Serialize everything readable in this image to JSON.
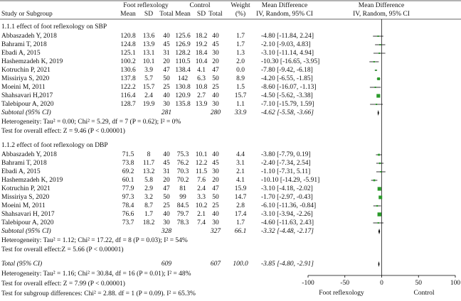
{
  "chart_data": {
    "type": "forest",
    "header": {
      "study": "Study or Subgroup",
      "group1": "Foot reflexology",
      "group2": "Control",
      "mean": "Mean",
      "sd": "SD",
      "total": "Total",
      "weight": "Weight",
      "weight_unit": "(%)",
      "effect": "Mean Difference",
      "method": "IV, Random, 95% CI",
      "plot_title": "Mean Difference",
      "plot_method": "IV, Random, 95% CI"
    },
    "subgroups": [
      {
        "label": "1.1.1 effect of foot reflexology on SBP",
        "studies": [
          {
            "name": "Abbaszadeh Y, 2018",
            "exp": [
              120.8,
              13.6,
              40
            ],
            "ctl": [
              125.6,
              18.2,
              40
            ],
            "weight": "1.7",
            "md": -4.8,
            "ci": [
              -11.84,
              2.24
            ],
            "md_label": "-4.80 [-11.84, 2.24]"
          },
          {
            "name": "Bahrami T, 2018",
            "exp": [
              124.8,
              13.9,
              45
            ],
            "ctl": [
              126.9,
              19.2,
              45
            ],
            "weight": "1.7",
            "md": -2.1,
            "ci": [
              -9.03,
              4.83
            ],
            "md_label": "-2.10 [-9.03, 4.83]"
          },
          {
            "name": "Ebadi A, 2015",
            "exp": [
              125.1,
              13.1,
              31
            ],
            "ctl": [
              128.2,
              18.4,
              30
            ],
            "weight": "1.3",
            "md": -3.1,
            "ci": [
              -11.14,
              4.94
            ],
            "md_label": "-3.10 [-11.14, 4.94]"
          },
          {
            "name": "Hashemzadeh K, 2019",
            "exp": [
              100.2,
              10.1,
              20
            ],
            "ctl": [
              110.5,
              10.4,
              20
            ],
            "weight": "2.0",
            "md": -10.3,
            "ci": [
              -16.65,
              -3.95
            ],
            "md_label": "-10.30 [-16.65, -3.95]"
          },
          {
            "name": "Kotruchin P, 2021",
            "exp": [
              130.6,
              3.9,
              47
            ],
            "ctl": [
              138.4,
              4.1,
              47
            ],
            "weight": "0.0",
            "md": -7.8,
            "ci": [
              -9.42,
              -6.18
            ],
            "md_label": "-7.80 [-9.42, -6.18]"
          },
          {
            "name": "Missiriya S, 2020",
            "exp": [
              137.8,
              5.7,
              50
            ],
            "ctl": [
              142,
              6.3,
              50
            ],
            "weight": "8.9",
            "md": -4.2,
            "ci": [
              -6.55,
              -1.85
            ],
            "md_label": "-4.20 [-6.55, -1.85]"
          },
          {
            "name": "Moeini M, 2011",
            "exp": [
              122.2,
              15.7,
              25
            ],
            "ctl": [
              130.8,
              10.8,
              25
            ],
            "weight": "1.5",
            "md": -8.6,
            "ci": [
              -16.07,
              -1.13
            ],
            "md_label": "-8.60 [-16.07, -1.13]"
          },
          {
            "name": "Shahsavari H,2017",
            "exp": [
              116.4,
              2.4,
              40
            ],
            "ctl": [
              120.9,
              2.7,
              40
            ],
            "weight": "15.7",
            "md": -4.5,
            "ci": [
              -5.62,
              -3.38
            ],
            "md_label": "-4.50 [-5.62, -3.38]"
          },
          {
            "name": "Talebipour A, 2020",
            "exp": [
              128.7,
              19.9,
              30
            ],
            "ctl": [
              135.8,
              13.9,
              30
            ],
            "weight": "1.1",
            "md": -7.1,
            "ci": [
              -15.79,
              1.59
            ],
            "md_label": "-7.10 [-15.79, 1.59]"
          }
        ],
        "subtotal": {
          "label": "Subtotal (95% CI)",
          "exp_total": 281,
          "ctl_total": 280,
          "weight": "33.9",
          "md": -4.62,
          "ci": [
            -5.58,
            -3.66
          ],
          "md_label": "-4.62 [-5.58, -3.66]"
        },
        "heterogeneity": "Heterogeneity: Tau² = 0.00; Chi² = 5.29, df = 7 (P = 0.62); I² = 0%",
        "overall": "Test for overall effect: Z = 9.46 (P < 0.00001)"
      },
      {
        "label": "1.1.2 effect of foot reflexology on DBP",
        "studies": [
          {
            "name": "Abbaszadeh Y, 2018",
            "exp": [
              71.5,
              8,
              40
            ],
            "ctl": [
              75.3,
              10.1,
              40
            ],
            "weight": "4.4",
            "md": -3.8,
            "ci": [
              -7.79,
              0.19
            ],
            "md_label": "-3.80 [-7.79, 0.19]"
          },
          {
            "name": "Bahrami T, 2018",
            "exp": [
              73.8,
              11.7,
              45
            ],
            "ctl": [
              76.2,
              12.2,
              45
            ],
            "weight": "3.1",
            "md": -2.4,
            "ci": [
              -7.34,
              2.54
            ],
            "md_label": "-2.40 [-7.34, 2.54]"
          },
          {
            "name": "Ebadi A, 2015",
            "exp": [
              69.2,
              13.2,
              31
            ],
            "ctl": [
              70.3,
              11.5,
              30
            ],
            "weight": "2.1",
            "md": -1.1,
            "ci": [
              -7.31,
              5.11
            ],
            "md_label": "-1.10 [-7.31, 5.11]"
          },
          {
            "name": "Hashemzadeh K, 2019",
            "exp": [
              60.1,
              5.8,
              20
            ],
            "ctl": [
              70.2,
              7.6,
              20
            ],
            "weight": "4.1",
            "md": -10.1,
            "ci": [
              -14.29,
              -5.91
            ],
            "md_label": "-10.10 [-14.29, -5.91]"
          },
          {
            "name": "Kotruchin P, 2021",
            "exp": [
              77.9,
              2.9,
              47
            ],
            "ctl": [
              81,
              2.4,
              47
            ],
            "weight": "15.9",
            "md": -3.1,
            "ci": [
              -4.18,
              -2.02
            ],
            "md_label": "-3.10 [-4.18, -2.02]"
          },
          {
            "name": "Missiriya S, 2020",
            "exp": [
              97.3,
              3.2,
              50
            ],
            "ctl": [
              99,
              3.3,
              50
            ],
            "weight": "14.7",
            "md": -1.7,
            "ci": [
              -2.97,
              -0.43
            ],
            "md_label": "-1.70 [-2.97, -0.43]"
          },
          {
            "name": "Moeini M, 2011",
            "exp": [
              78.4,
              8.7,
              25
            ],
            "ctl": [
              84.5,
              10.2,
              25
            ],
            "weight": "2.8",
            "md": -6.1,
            "ci": [
              -11.36,
              -0.84
            ],
            "md_label": "-6.10 [-11.36, -0.84]"
          },
          {
            "name": "Shahsavari H, 2017",
            "exp": [
              76.6,
              1.7,
              40
            ],
            "ctl": [
              79.7,
              2.1,
              40
            ],
            "weight": "17.4",
            "md": -3.1,
            "ci": [
              -3.94,
              -2.26
            ],
            "md_label": "-3.10 [-3.94, -2.26]"
          },
          {
            "name": "Talebipour A, 2020",
            "exp": [
              73.7,
              18.2,
              30
            ],
            "ctl": [
              78.3,
              7.4,
              30
            ],
            "weight": "1.7",
            "md": -4.6,
            "ci": [
              -11.63,
              2.43
            ],
            "md_label": "-4.60 [-11.63, 2.43]"
          }
        ],
        "subtotal": {
          "label": "Subtotal (95% CI)",
          "exp_total": 328,
          "ctl_total": 327,
          "weight": "66.1",
          "md": -3.32,
          "ci": [
            -4.48,
            -2.17
          ],
          "md_label": "-3.32 [-4.48, -2.17]"
        },
        "heterogeneity": "Heterogeneity: Tau² = 1.12; Chi² = 17.22, df = 8 (P = 0.03); I² = 54%",
        "overall": "Test for overall effect:Z = 5.66 (P < 0.00001)"
      }
    ],
    "total": {
      "label": "Total (95% CI)",
      "exp_total": 609,
      "ctl_total": 607,
      "weight": "100.0",
      "md": -3.85,
      "ci": [
        -4.8,
        -2.91
      ],
      "md_label": "-3.85 [-4.80, -2.91]",
      "heterogeneity": "Heterogeneity: Tau² = 1.16; Chi² = 30.84, df = 16 (P = 0.01); I² = 48%",
      "overall": "Test for overall effect: Z = 7.99 (P < 0.00001)"
    },
    "subgroup_test": "Test for subgroup differences: Chi² = 2.88. df = 1 (P = 0.09). I² = 65.3%",
    "xlim": [
      -100,
      100
    ],
    "xticks": [
      -100,
      -50,
      0,
      50,
      100
    ],
    "x_left_label": "Foot reflexology",
    "x_right_label": "Control",
    "square_color": "#2a9a2a",
    "diamond_color": "#000000"
  }
}
